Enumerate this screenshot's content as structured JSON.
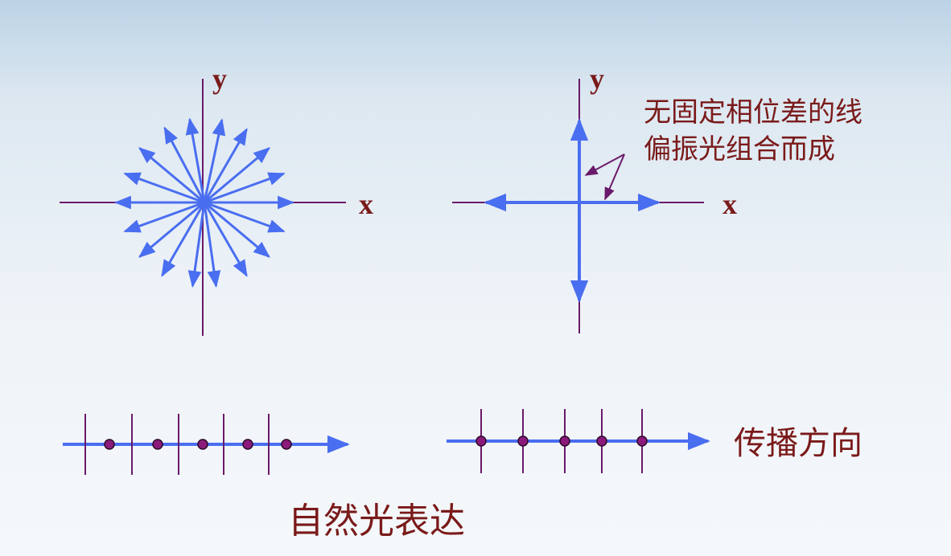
{
  "colors": {
    "axis": "#6a1a6a",
    "vector": "#4a6ef0",
    "dot_fill": "#8b1a7a",
    "text": "#7a1a1a"
  },
  "panel_natural": {
    "y_label": "y",
    "x_label": "x"
  },
  "panel_components": {
    "y_label": "y",
    "x_label": "x",
    "annotation_line1": "无固定相位差的线",
    "annotation_line2": "偏振光组合而成"
  },
  "propagation": {
    "label": "传播方向",
    "left_dots": 5,
    "right_dots": 5
  },
  "caption": "自然光表达"
}
